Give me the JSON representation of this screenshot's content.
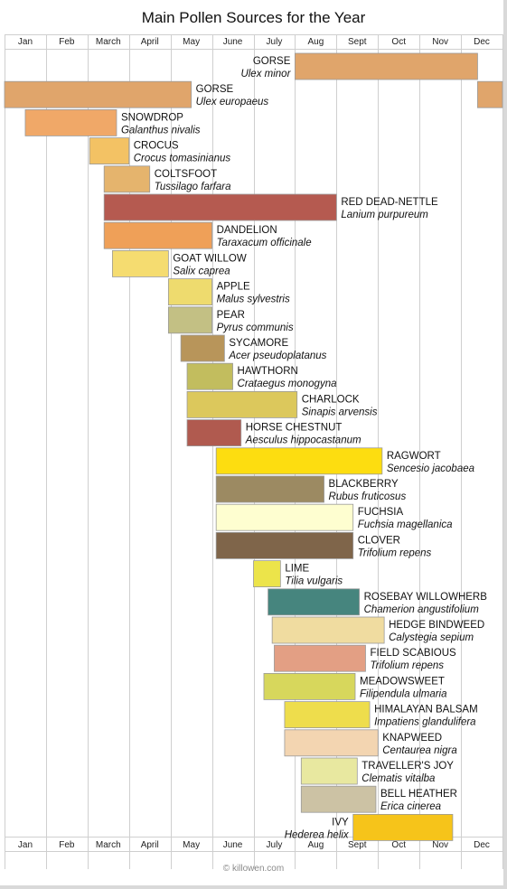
{
  "chart_data": {
    "type": "timeline",
    "title": "Main Pollen Sources for the Year",
    "credit": "© killowen.com",
    "months": [
      "Jan",
      "Feb",
      "March",
      "April",
      "May",
      "June",
      "July",
      "Aug",
      "Sept",
      "Oct",
      "Nov",
      "Dec"
    ],
    "grid": true,
    "series": [
      {
        "name": "GORSE",
        "sci": "Ulex minor",
        "segments": [
          [
            7.0,
            11.4
          ]
        ],
        "color": "#e0a56b"
      },
      {
        "name": "GORSE",
        "sci": "Ulex europaeus",
        "segments": [
          [
            0.0,
            4.5
          ],
          [
            11.4,
            12.0
          ]
        ],
        "color": "#e0a56b"
      },
      {
        "name": "SNOWDROP",
        "sci": "Galanthus nivalis",
        "segments": [
          [
            0.5,
            2.7
          ]
        ],
        "color": "#f0a868"
      },
      {
        "name": "CROCUS",
        "sci": "Crocus tomasinianus",
        "segments": [
          [
            2.05,
            3.0
          ]
        ],
        "color": "#f3c264"
      },
      {
        "name": "COLTSFOOT",
        "sci": "Tussilago farfara",
        "segments": [
          [
            2.4,
            3.5
          ]
        ],
        "color": "#e5b46d"
      },
      {
        "name": "RED DEAD-NETTLE",
        "sci": "Lanium purpureum",
        "segments": [
          [
            2.4,
            8.0
          ]
        ],
        "color": "#b55a50"
      },
      {
        "name": "DANDELION",
        "sci": "Taraxacum officinale",
        "segments": [
          [
            2.4,
            5.0
          ]
        ],
        "color": "#efa058"
      },
      {
        "name": "GOAT WILLOW",
        "sci": "Salix caprea",
        "segments": [
          [
            2.6,
            3.95
          ]
        ],
        "color": "#f5dc70"
      },
      {
        "name": "APPLE",
        "sci": "Malus sylvestris",
        "segments": [
          [
            3.95,
            5.0
          ]
        ],
        "color": "#eedb6e"
      },
      {
        "name": "PEAR",
        "sci": "Pyrus communis",
        "segments": [
          [
            3.95,
            5.0
          ]
        ],
        "color": "#c3c084"
      },
      {
        "name": "SYCAMORE",
        "sci": "Acer pseudoplatanus",
        "segments": [
          [
            4.25,
            5.3
          ]
        ],
        "color": "#b8955a"
      },
      {
        "name": "HAWTHORN",
        "sci": "Crataegus monogyna",
        "segments": [
          [
            4.4,
            5.5
          ]
        ],
        "color": "#c2bd5e"
      },
      {
        "name": "CHARLOCK",
        "sci": "Sinapis arvensis",
        "segments": [
          [
            4.4,
            7.05
          ]
        ],
        "color": "#dcc85c"
      },
      {
        "name": "HORSE CHESTNUT",
        "sci": "Aesculus hippocastanum",
        "segments": [
          [
            4.4,
            5.7
          ]
        ],
        "color": "#b05a4f"
      },
      {
        "name": "RAGWORT",
        "sci": "Sencesio jacobaea",
        "segments": [
          [
            5.1,
            9.1
          ]
        ],
        "color": "#fddd10"
      },
      {
        "name": "BLACKBERRY",
        "sci": "Rubus fruticosus",
        "segments": [
          [
            5.1,
            7.7
          ]
        ],
        "color": "#9c8a62"
      },
      {
        "name": "FUCHSIA",
        "sci": "Fuchsia magellanica",
        "segments": [
          [
            5.1,
            8.4
          ]
        ],
        "color": "#fefed0"
      },
      {
        "name": "CLOVER",
        "sci": "Trifolium repens",
        "segments": [
          [
            5.1,
            8.4
          ]
        ],
        "color": "#7f654a"
      },
      {
        "name": "LIME",
        "sci": "Tilia vulgaris",
        "segments": [
          [
            6.0,
            6.65
          ]
        ],
        "color": "#ece44a"
      },
      {
        "name": "ROSEBAY WILLOWHERB",
        "sci": "Chamerion angustifolium",
        "segments": [
          [
            6.35,
            8.55
          ]
        ],
        "color": "#46857e"
      },
      {
        "name": "HEDGE BINDWEED",
        "sci": "Calystegia sepium",
        "segments": [
          [
            6.45,
            9.15
          ]
        ],
        "color": "#f0dca0"
      },
      {
        "name": "FIELD SCABIOUS",
        "sci": "Trifolium repens",
        "segments": [
          [
            6.5,
            8.7
          ]
        ],
        "color": "#e39f84"
      },
      {
        "name": "MEADOWSWEET",
        "sci": "Filipendula ulmaria",
        "segments": [
          [
            6.25,
            8.45
          ]
        ],
        "color": "#d7d75c"
      },
      {
        "name": "HIMALAYAN BALSAM",
        "sci": "Impatiens glandulifera",
        "segments": [
          [
            6.75,
            8.8
          ]
        ],
        "color": "#eedd4c"
      },
      {
        "name": "KNAPWEED",
        "sci": "Centaurea nigra",
        "segments": [
          [
            6.75,
            9.0
          ]
        ],
        "color": "#f3d5b1"
      },
      {
        "name": "TRAVELLER'S JOY",
        "sci": "Clematis vitalba",
        "segments": [
          [
            7.15,
            8.5
          ]
        ],
        "color": "#e8e8a0"
      },
      {
        "name": "BELL HEATHER",
        "sci": "Erica cinerea",
        "segments": [
          [
            7.15,
            8.95
          ]
        ],
        "color": "#ccc2a4"
      },
      {
        "name": "IVY",
        "sci": "Hederea helix",
        "segments": [
          [
            8.4,
            10.8
          ]
        ],
        "color": "#f6c41a"
      }
    ]
  }
}
